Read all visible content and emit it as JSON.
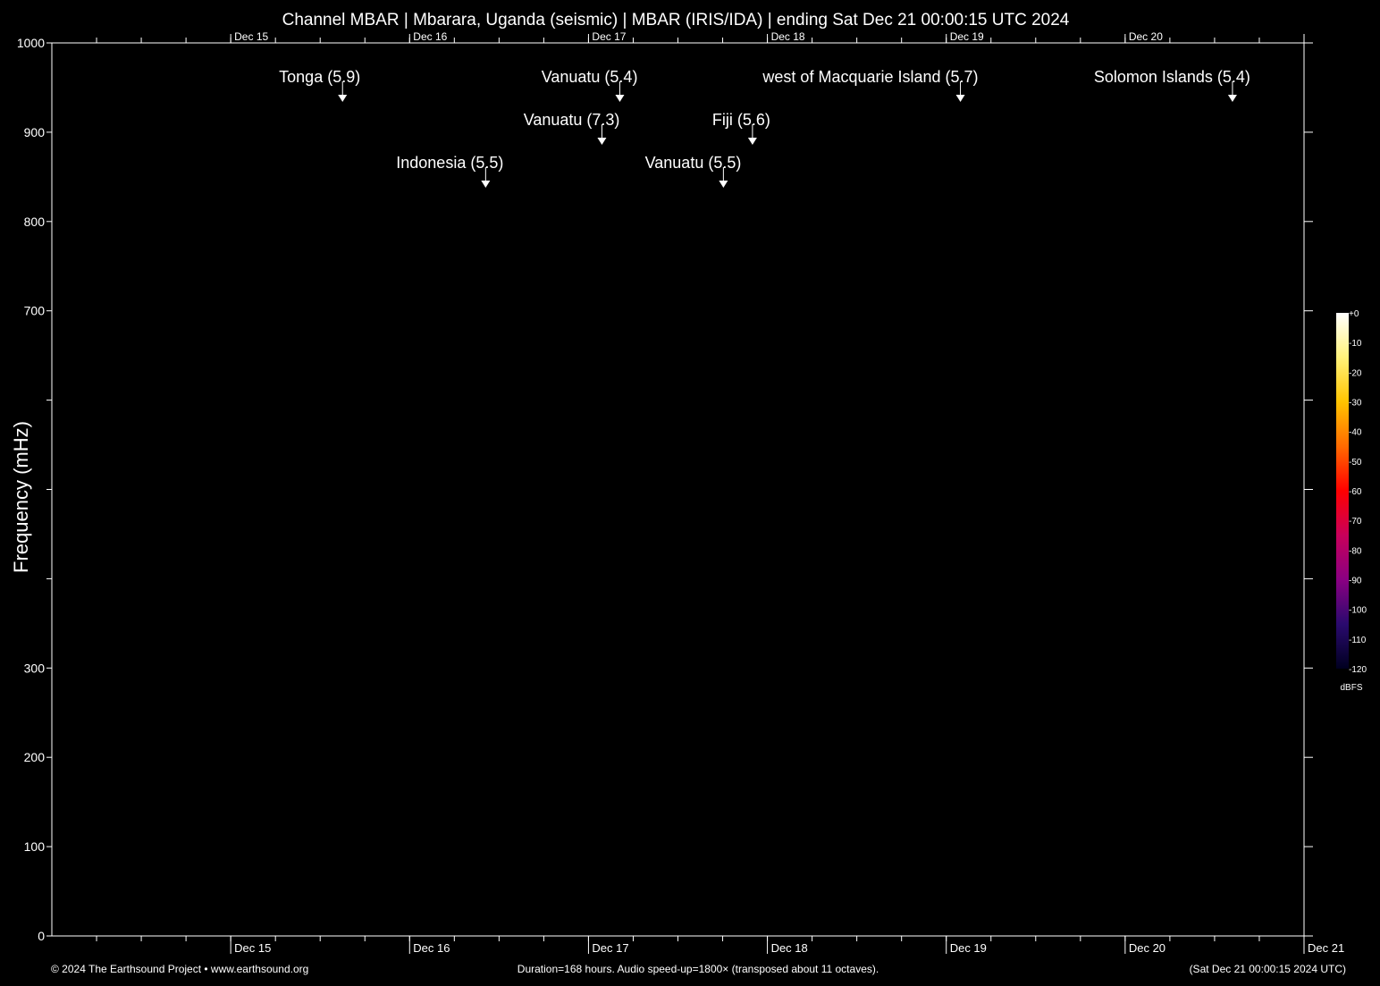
{
  "chart_data": {
    "type": "heatmap",
    "title": "Channel MBAR | Mbarara, Uganda (seismic) | MBAR (IRIS/IDA) | ending Sat Dec 21 00:00:15 UTC 2024",
    "ylabel": "Frequency (mHz)",
    "xlabel": "",
    "ylim": [
      0,
      1000
    ],
    "xlim_hours": [
      0,
      168
    ],
    "y_ticks": [
      0,
      100,
      200,
      300,
      400,
      500,
      600,
      700,
      800,
      900,
      1000
    ],
    "y_tick_labels": [
      "0",
      "100",
      "200",
      "300",
      "",
      "",
      "",
      "700",
      "800",
      "900",
      "1000"
    ],
    "x_day_labels": [
      "Dec 15",
      "Dec 16",
      "Dec 17",
      "Dec 18",
      "Dec 19",
      "Dec 20",
      "Dec 21"
    ],
    "x_day_hours": [
      24,
      48,
      72,
      96,
      120,
      144,
      168
    ],
    "x_minor_tick_step_hours": 6,
    "events": [
      {
        "label": "Tonga (5.9)",
        "hour": 39.0,
        "row": 0
      },
      {
        "label": "Vanuatu (5.4)",
        "hour": 76.2,
        "row": 0
      },
      {
        "label": "west of Macquarie Island (5.7)",
        "hour": 121.9,
        "row": 0
      },
      {
        "label": "Solomon Islands (5.4)",
        "hour": 158.4,
        "row": 0
      },
      {
        "label": "Vanuatu (7.3)",
        "hour": 73.8,
        "row": 1
      },
      {
        "label": "Fiji (5.6)",
        "hour": 94.0,
        "row": 1
      },
      {
        "label": "Indonesia (5.5)",
        "hour": 58.2,
        "row": 2
      },
      {
        "label": "Vanuatu (5.5)",
        "hour": 90.1,
        "row": 2
      }
    ],
    "colorbar": {
      "unit": "dBFS",
      "range": [
        -120,
        0
      ],
      "tick_labels": [
        "+0",
        "-10",
        "-20",
        "-30",
        "-40",
        "-50",
        "-60",
        "-70",
        "-80",
        "-90",
        "-100",
        "-110",
        "-120"
      ],
      "colors": [
        "#ffffff",
        "#fff27a",
        "#ffc400",
        "#ff6a00",
        "#ff0000",
        "#c8005a",
        "#8a0082",
        "#2a0a6e",
        "#000020"
      ]
    },
    "background": "#000000"
  },
  "footer": {
    "copyright": "© 2024 The Earthsound Project • www.earthsound.org",
    "duration": "Duration=168 hours. Audio speed-up=1800× (transposed about 11 octaves).",
    "end_time": "(Sat Dec 21 00:00:15 2024 UTC)"
  }
}
